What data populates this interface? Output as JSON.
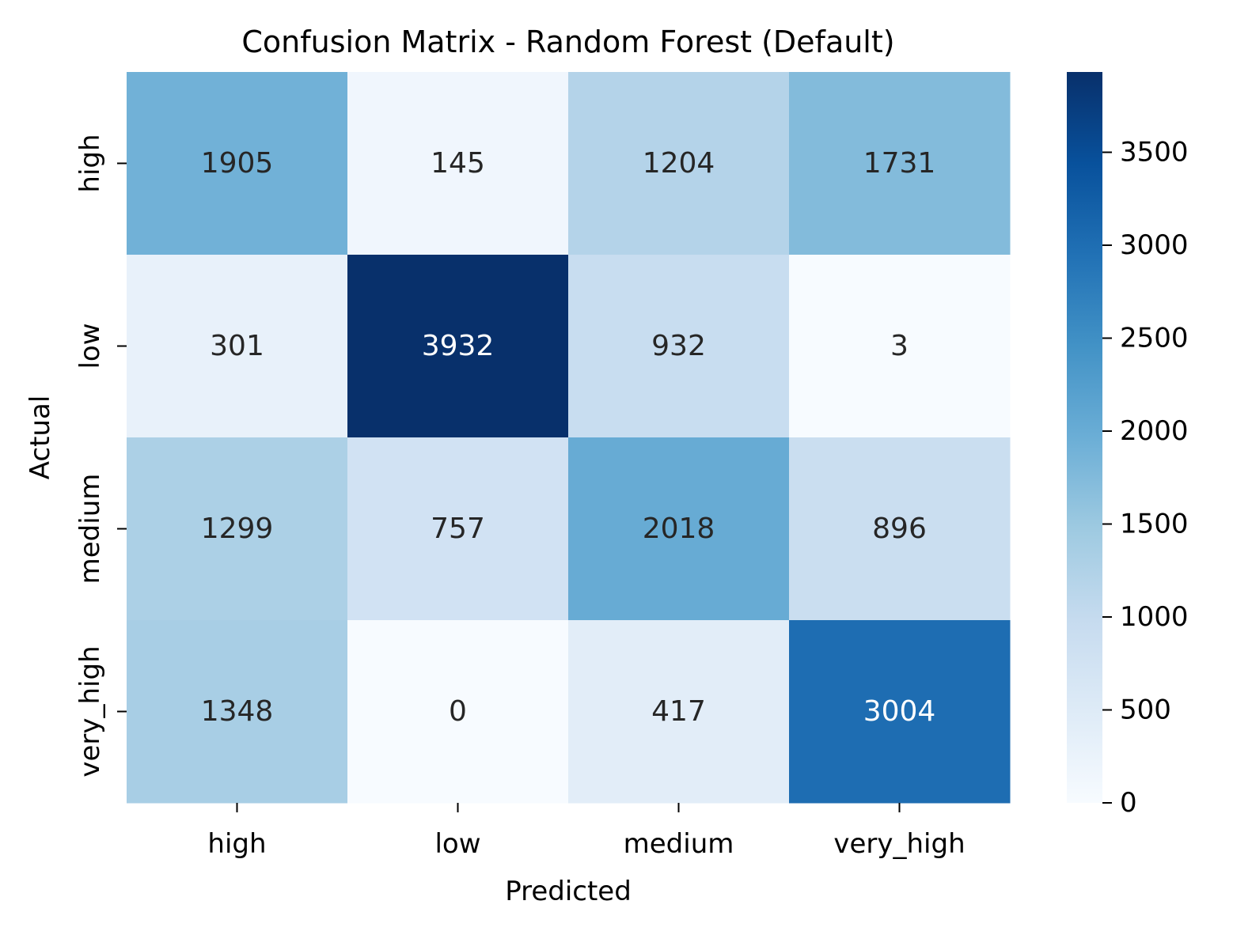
{
  "chart_data": {
    "type": "heatmap",
    "title": "Confusion Matrix - Random Forest (Default)",
    "xlabel": "Predicted",
    "ylabel": "Actual",
    "x_categories": [
      "high",
      "low",
      "medium",
      "very_high"
    ],
    "y_categories": [
      "high",
      "low",
      "medium",
      "very_high"
    ],
    "matrix": [
      [
        1905,
        145,
        1204,
        1731
      ],
      [
        301,
        3932,
        932,
        3
      ],
      [
        1299,
        757,
        2018,
        896
      ],
      [
        1348,
        0,
        417,
        3004
      ]
    ],
    "colorbar": {
      "colormap": "Blues",
      "range": [
        0,
        3932
      ],
      "ticks": [
        0,
        500,
        1000,
        1500,
        2000,
        2500,
        3000,
        3500
      ]
    },
    "annotation_colors": {
      "dark": "#262626",
      "light": "#ffffff"
    }
  }
}
